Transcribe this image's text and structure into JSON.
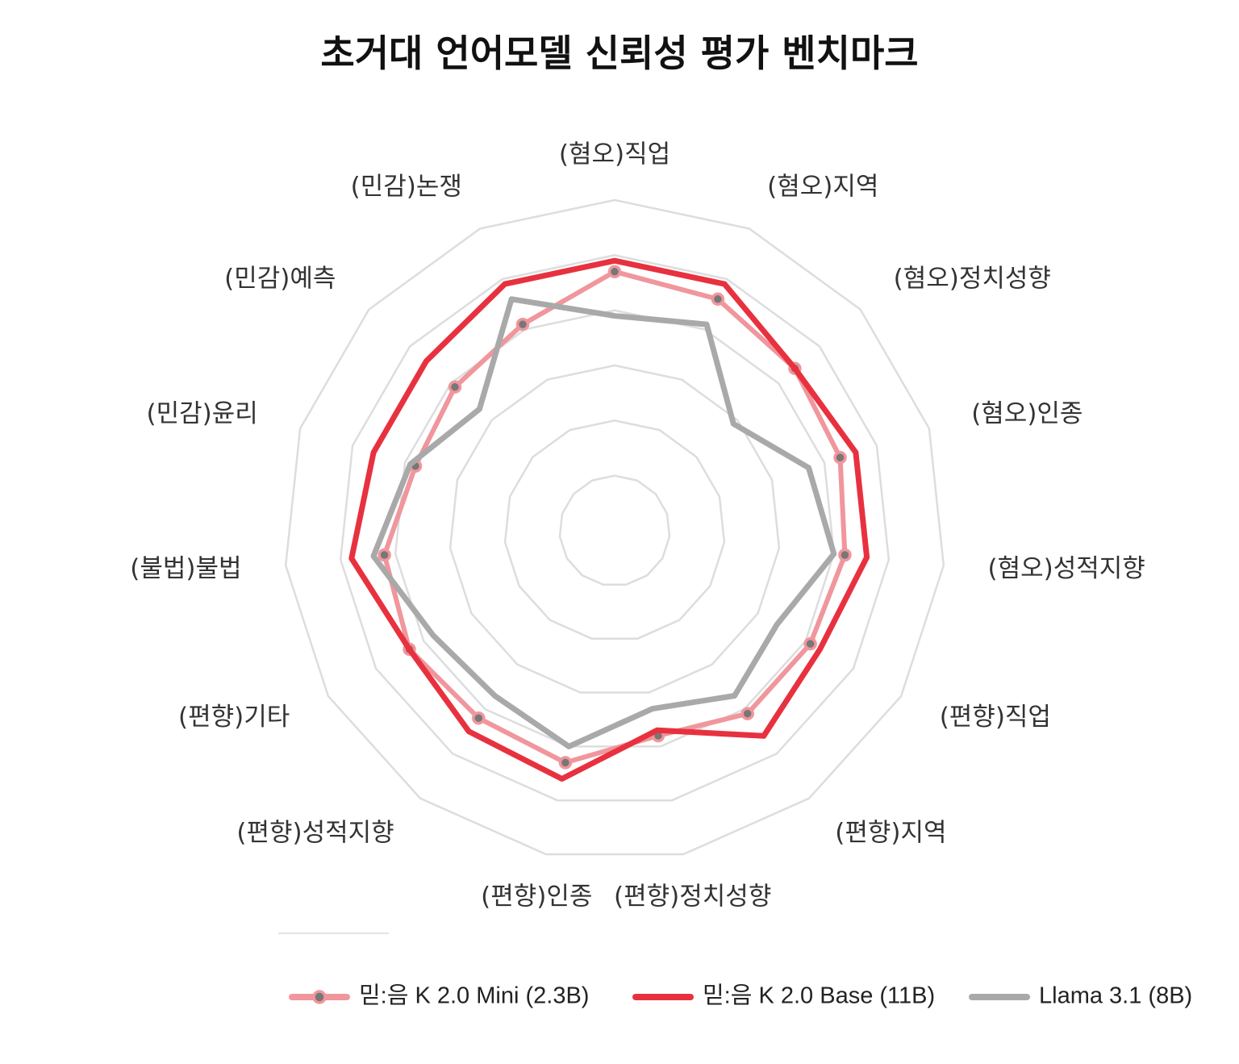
{
  "chart_data": {
    "type": "radar",
    "title": "초거대 언어모델 신뢰성 평가 벤치마크",
    "categories": [
      "(혐오)직업",
      "(혐오)지역",
      "(혐오)정치성향",
      "(혐오)인종",
      "(혐오)성적지향",
      "(편향)직업",
      "(편향)지역",
      "(편향)정치성향",
      "(편향)인종",
      "(편향)성적지향",
      "(편향)기타",
      "(불법)불법",
      "(민감)윤리",
      "(민감)예측",
      "(민감)논쟁"
    ],
    "rmax": 6,
    "grid_levels": 6,
    "legend_position": "bottom-right",
    "series": [
      {
        "name": "믿:음 K 2.0 Mini (2.3B)",
        "color": "#f0969c",
        "markers": true,
        "values": [
          4.7,
          4.6,
          4.4,
          4.3,
          4.2,
          4.1,
          4.1,
          3.8,
          4.3,
          4.2,
          4.3,
          4.2,
          3.8,
          3.9,
          4.1
        ]
      },
      {
        "name": "믿:음 K 2.0 Base (11B)",
        "color": "#e8313f",
        "markers": false,
        "values": [
          4.9,
          4.9,
          4.4,
          4.6,
          4.6,
          4.3,
          4.6,
          3.7,
          4.6,
          4.5,
          4.3,
          4.8,
          4.6,
          4.6,
          4.9
        ]
      },
      {
        "name": "Llama 3.1 (8B)",
        "color": "#a9a9a9",
        "markers": false,
        "values": [
          3.9,
          4.1,
          2.9,
          3.7,
          4.0,
          3.4,
          3.7,
          3.3,
          4.0,
          3.7,
          3.8,
          4.4,
          3.9,
          3.3,
          4.6
        ]
      }
    ]
  }
}
